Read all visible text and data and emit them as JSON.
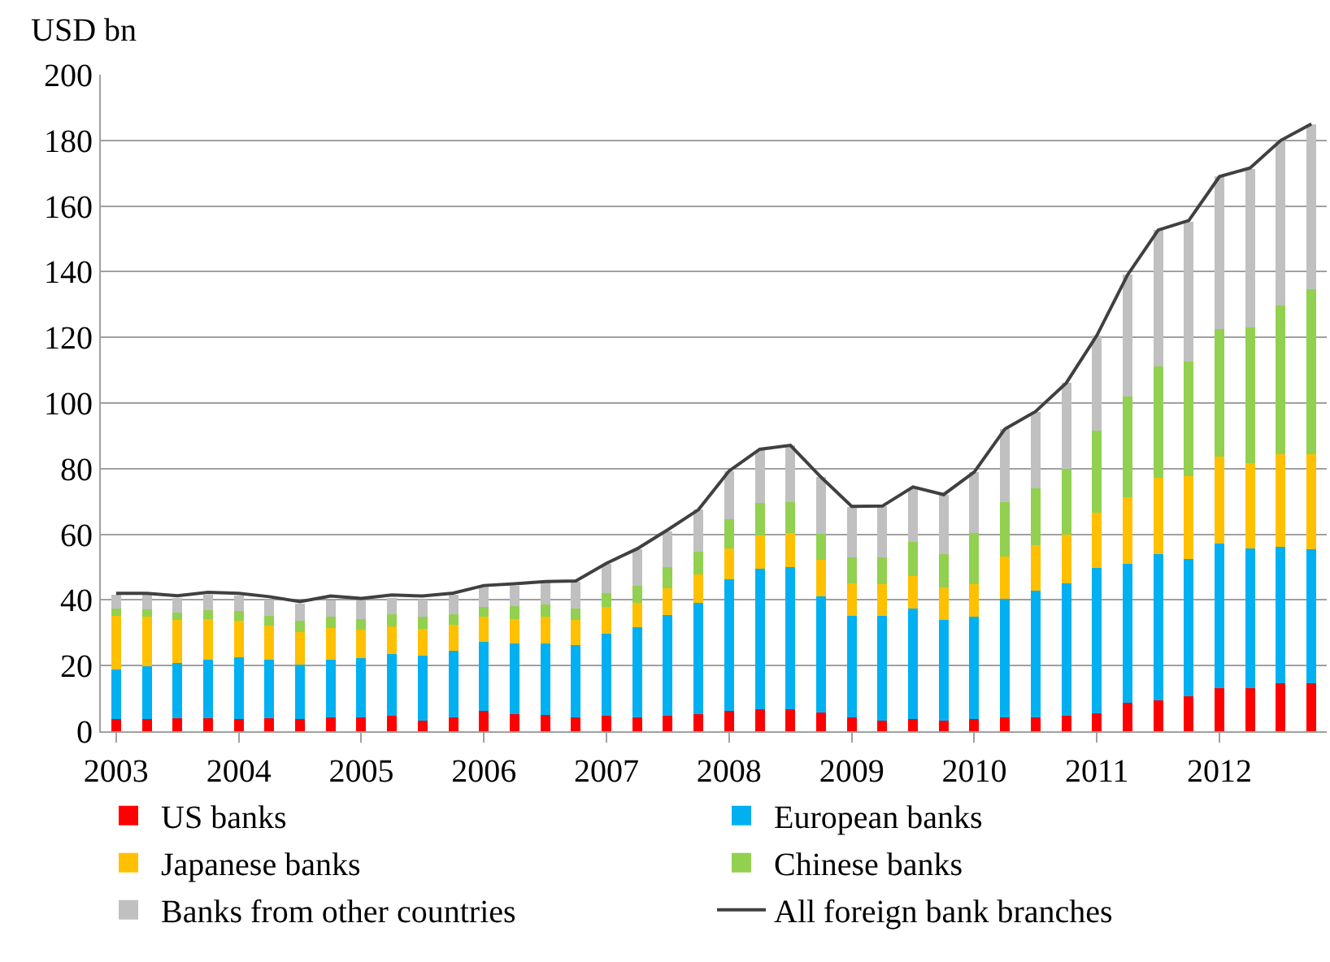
{
  "chart_data": {
    "type": "bar",
    "stacked": true,
    "ylabel": "USD bn",
    "categories": [
      "2003",
      null,
      null,
      null,
      "2004",
      null,
      null,
      null,
      "2005",
      null,
      null,
      null,
      "2006",
      null,
      null,
      null,
      "2007",
      null,
      null,
      null,
      "2008",
      null,
      null,
      null,
      "2009",
      null,
      null,
      null,
      "2010",
      null,
      null,
      null,
      "2011",
      null,
      null,
      null,
      "2012",
      null,
      null,
      null
    ],
    "series": [
      {
        "name": "US banks",
        "color": "#ff0000",
        "values": [
          3.6,
          3.6,
          4,
          4,
          3.8,
          4,
          3.8,
          4.3,
          4.1,
          4.6,
          3.3,
          4.1,
          6.1,
          5.3,
          4.9,
          4.1,
          4.6,
          4.1,
          4.6,
          5.3,
          6.3,
          6.6,
          6.6,
          5.6,
          4.1,
          3.3,
          3.6,
          3.3,
          3.6,
          4.1,
          4.1,
          4.6,
          5.4,
          8.6,
          9.5,
          10.7,
          13,
          13,
          14.6,
          14.5
        ]
      },
      {
        "name": "European banks",
        "color": "#00b0f0",
        "values": [
          15.2,
          16.2,
          16.7,
          17.9,
          18.7,
          17.9,
          16.4,
          17.6,
          18.3,
          18.9,
          19.7,
          20.3,
          21.1,
          21.5,
          21.9,
          22.1,
          25.2,
          27.5,
          30.8,
          33.9,
          40.1,
          42.9,
          43.4,
          35.6,
          31.1,
          31.9,
          33.9,
          30.6,
          31.3,
          36.2,
          38.7,
          40.5,
          44.3,
          42.4,
          44.5,
          41.8,
          44.3,
          42.6,
          41.5,
          40.9
        ]
      },
      {
        "name": "Japanese banks",
        "color": "#ffc000",
        "values": [
          16.4,
          15.2,
          13.3,
          12.3,
          11.2,
          10.2,
          10.1,
          9.5,
          8.5,
          8.4,
          8.1,
          8,
          7.7,
          7.4,
          8.1,
          7.7,
          8.1,
          7.6,
          8.2,
          8.5,
          9.2,
          10.1,
          10.4,
          11,
          9.9,
          9.7,
          9.7,
          10,
          10,
          13,
          13.8,
          14.8,
          16.9,
          20.4,
          23.3,
          25.3,
          26.3,
          26.2,
          28.3,
          29
        ]
      },
      {
        "name": "Chinese banks",
        "color": "#92d050",
        "values": [
          2.2,
          2.2,
          2.2,
          2.8,
          3,
          3.1,
          3.3,
          3.5,
          3.3,
          3.7,
          3.8,
          3.2,
          3,
          4,
          3.8,
          3.6,
          4.1,
          5.2,
          6.4,
          7,
          8.9,
          9.9,
          9.4,
          8,
          7.9,
          8.1,
          10.4,
          10.1,
          15.5,
          16.5,
          17.4,
          20.1,
          25,
          30.6,
          33.9,
          34.9,
          39,
          41.3,
          45.4,
          50.3
        ]
      },
      {
        "name": "Banks from other countries",
        "color": "#c0c0c0",
        "values": [
          4.1,
          4.3,
          4.5,
          4.6,
          4.6,
          5,
          5.2,
          4.9,
          5.6,
          4.9,
          5.3,
          5.9,
          6.2,
          6.2,
          6.6,
          8.1,
          9,
          11.1,
          10.9,
          12.8,
          14.8,
          16.1,
          17.3,
          17.2,
          15.3,
          15.5,
          16.4,
          18.1,
          18.6,
          22.3,
          23.4,
          26.1,
          29,
          37,
          41.5,
          42.6,
          46.4,
          48.3,
          50.2,
          50.3
        ]
      },
      {
        "name": "All foreign bank branches",
        "type": "line",
        "color": "#404040",
        "values": [
          42,
          42,
          41.3,
          42.3,
          42,
          41,
          39.5,
          41.2,
          40.5,
          41.5,
          41.2,
          42.1,
          44.4,
          44.9,
          45.6,
          45.8,
          51.2,
          55.6,
          61.4,
          67.5,
          79.3,
          85.9,
          87.1,
          77.4,
          68.5,
          68.6,
          74.4,
          72.1,
          79,
          92.1,
          97.4,
          106.1,
          120.6,
          139,
          152.7,
          155.6,
          169,
          171.6,
          180,
          185
        ]
      }
    ],
    "ylim": [
      0,
      200
    ],
    "yticks": [
      0,
      20,
      40,
      60,
      80,
      100,
      120,
      140,
      160,
      180,
      200
    ],
    "grid": "y",
    "legend": "bottom",
    "marker": "none",
    "line_style": "solid"
  }
}
